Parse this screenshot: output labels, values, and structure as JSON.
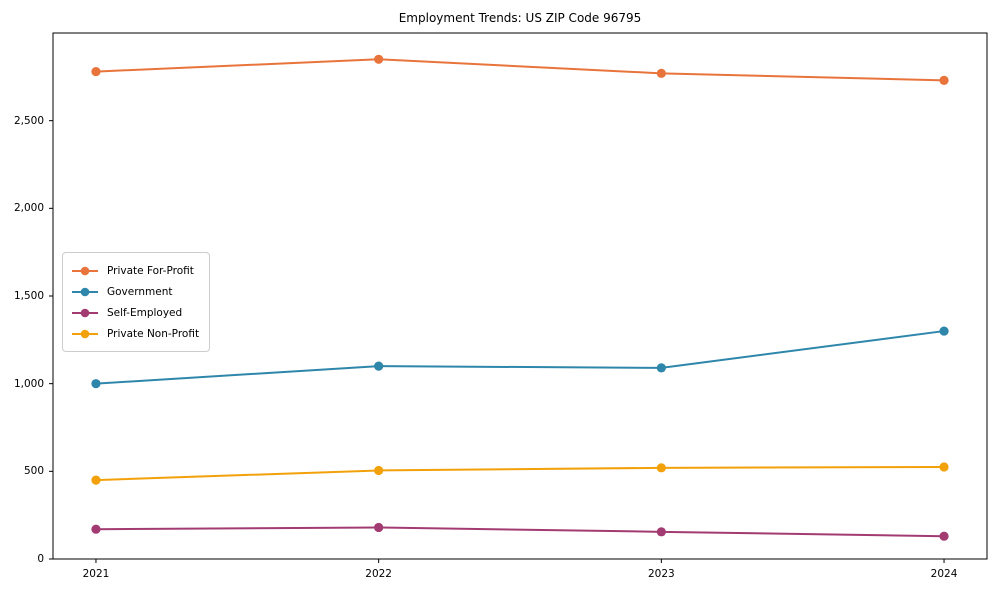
{
  "title": "Employment Trends: US ZIP Code 96795",
  "chart_data": {
    "type": "line",
    "title": "Employment Trends: US ZIP Code 96795",
    "x": [
      2021,
      2022,
      2023,
      2024
    ],
    "xtick_labels": [
      "2021",
      "2022",
      "2023",
      "2024"
    ],
    "yticks": [
      0,
      500,
      1000,
      1500,
      2000,
      2500
    ],
    "ytick_labels": [
      "0",
      "500",
      "1,000",
      "1,500",
      "2,000",
      "2,500"
    ],
    "ylim": [
      0,
      3000
    ],
    "xlabel": "",
    "ylabel": "",
    "grid": false,
    "legend_position": "center-left",
    "marker": "circle",
    "series": [
      {
        "name": "Private For-Profit",
        "color": "#E8743B",
        "values": [
          2780,
          2850,
          2770,
          2730
        ]
      },
      {
        "name": "Government",
        "color": "#2E86AB",
        "values": [
          1000,
          1100,
          1090,
          1300
        ]
      },
      {
        "name": "Self-Employed",
        "color": "#A23B72",
        "values": [
          170,
          180,
          155,
          130
        ]
      },
      {
        "name": "Private Non-Profit",
        "color": "#F2A10B",
        "values": [
          450,
          505,
          520,
          525
        ]
      }
    ]
  }
}
